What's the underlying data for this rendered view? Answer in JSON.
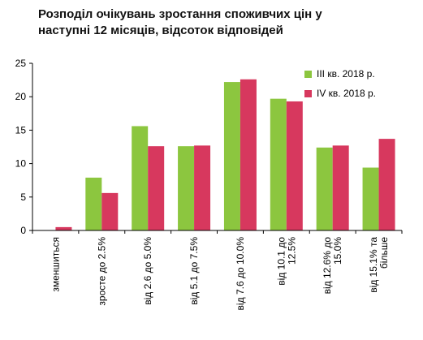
{
  "chart_data": {
    "type": "bar",
    "title_lines": [
      "Розподіл очікувань зростання споживчих цін у",
      "наступні 12 місяців, відсоток відповідей"
    ],
    "categories": [
      "зменшиться",
      "зросте до 2.5%",
      "від 2.6 до 5.0%",
      "від 5.1 до 7.5%",
      "від 7.6 до 10.0%",
      "від 10.1 до 12.5%",
      "від 12.6% до 15.0%",
      "від 15.1% та більше"
    ],
    "category_label_lines": [
      [
        "зменшиться"
      ],
      [
        "зросте до 2.5%"
      ],
      [
        "від 2.6 до 5.0%"
      ],
      [
        "від 5.1 до 7.5%"
      ],
      [
        "від 7.6 до 10.0%"
      ],
      [
        "від 10.1 до",
        "12.5%"
      ],
      [
        "від 12.6% до",
        "15.0%"
      ],
      [
        "від 15.1% та",
        "більше"
      ]
    ],
    "series": [
      {
        "name": "III кв. 2018 р.",
        "color": "#8cc63f",
        "values": [
          0.0,
          7.9,
          15.6,
          12.6,
          22.2,
          19.7,
          12.4,
          9.4
        ]
      },
      {
        "name": "IV кв. 2018 р.",
        "color": "#d7385e",
        "values": [
          0.5,
          5.6,
          12.6,
          12.7,
          22.6,
          19.3,
          12.7,
          13.7
        ]
      }
    ],
    "ylim": [
      0,
      25
    ],
    "yticks": [
      0,
      5,
      10,
      15,
      20,
      25
    ],
    "grid": false,
    "legend_position": "top-right"
  }
}
